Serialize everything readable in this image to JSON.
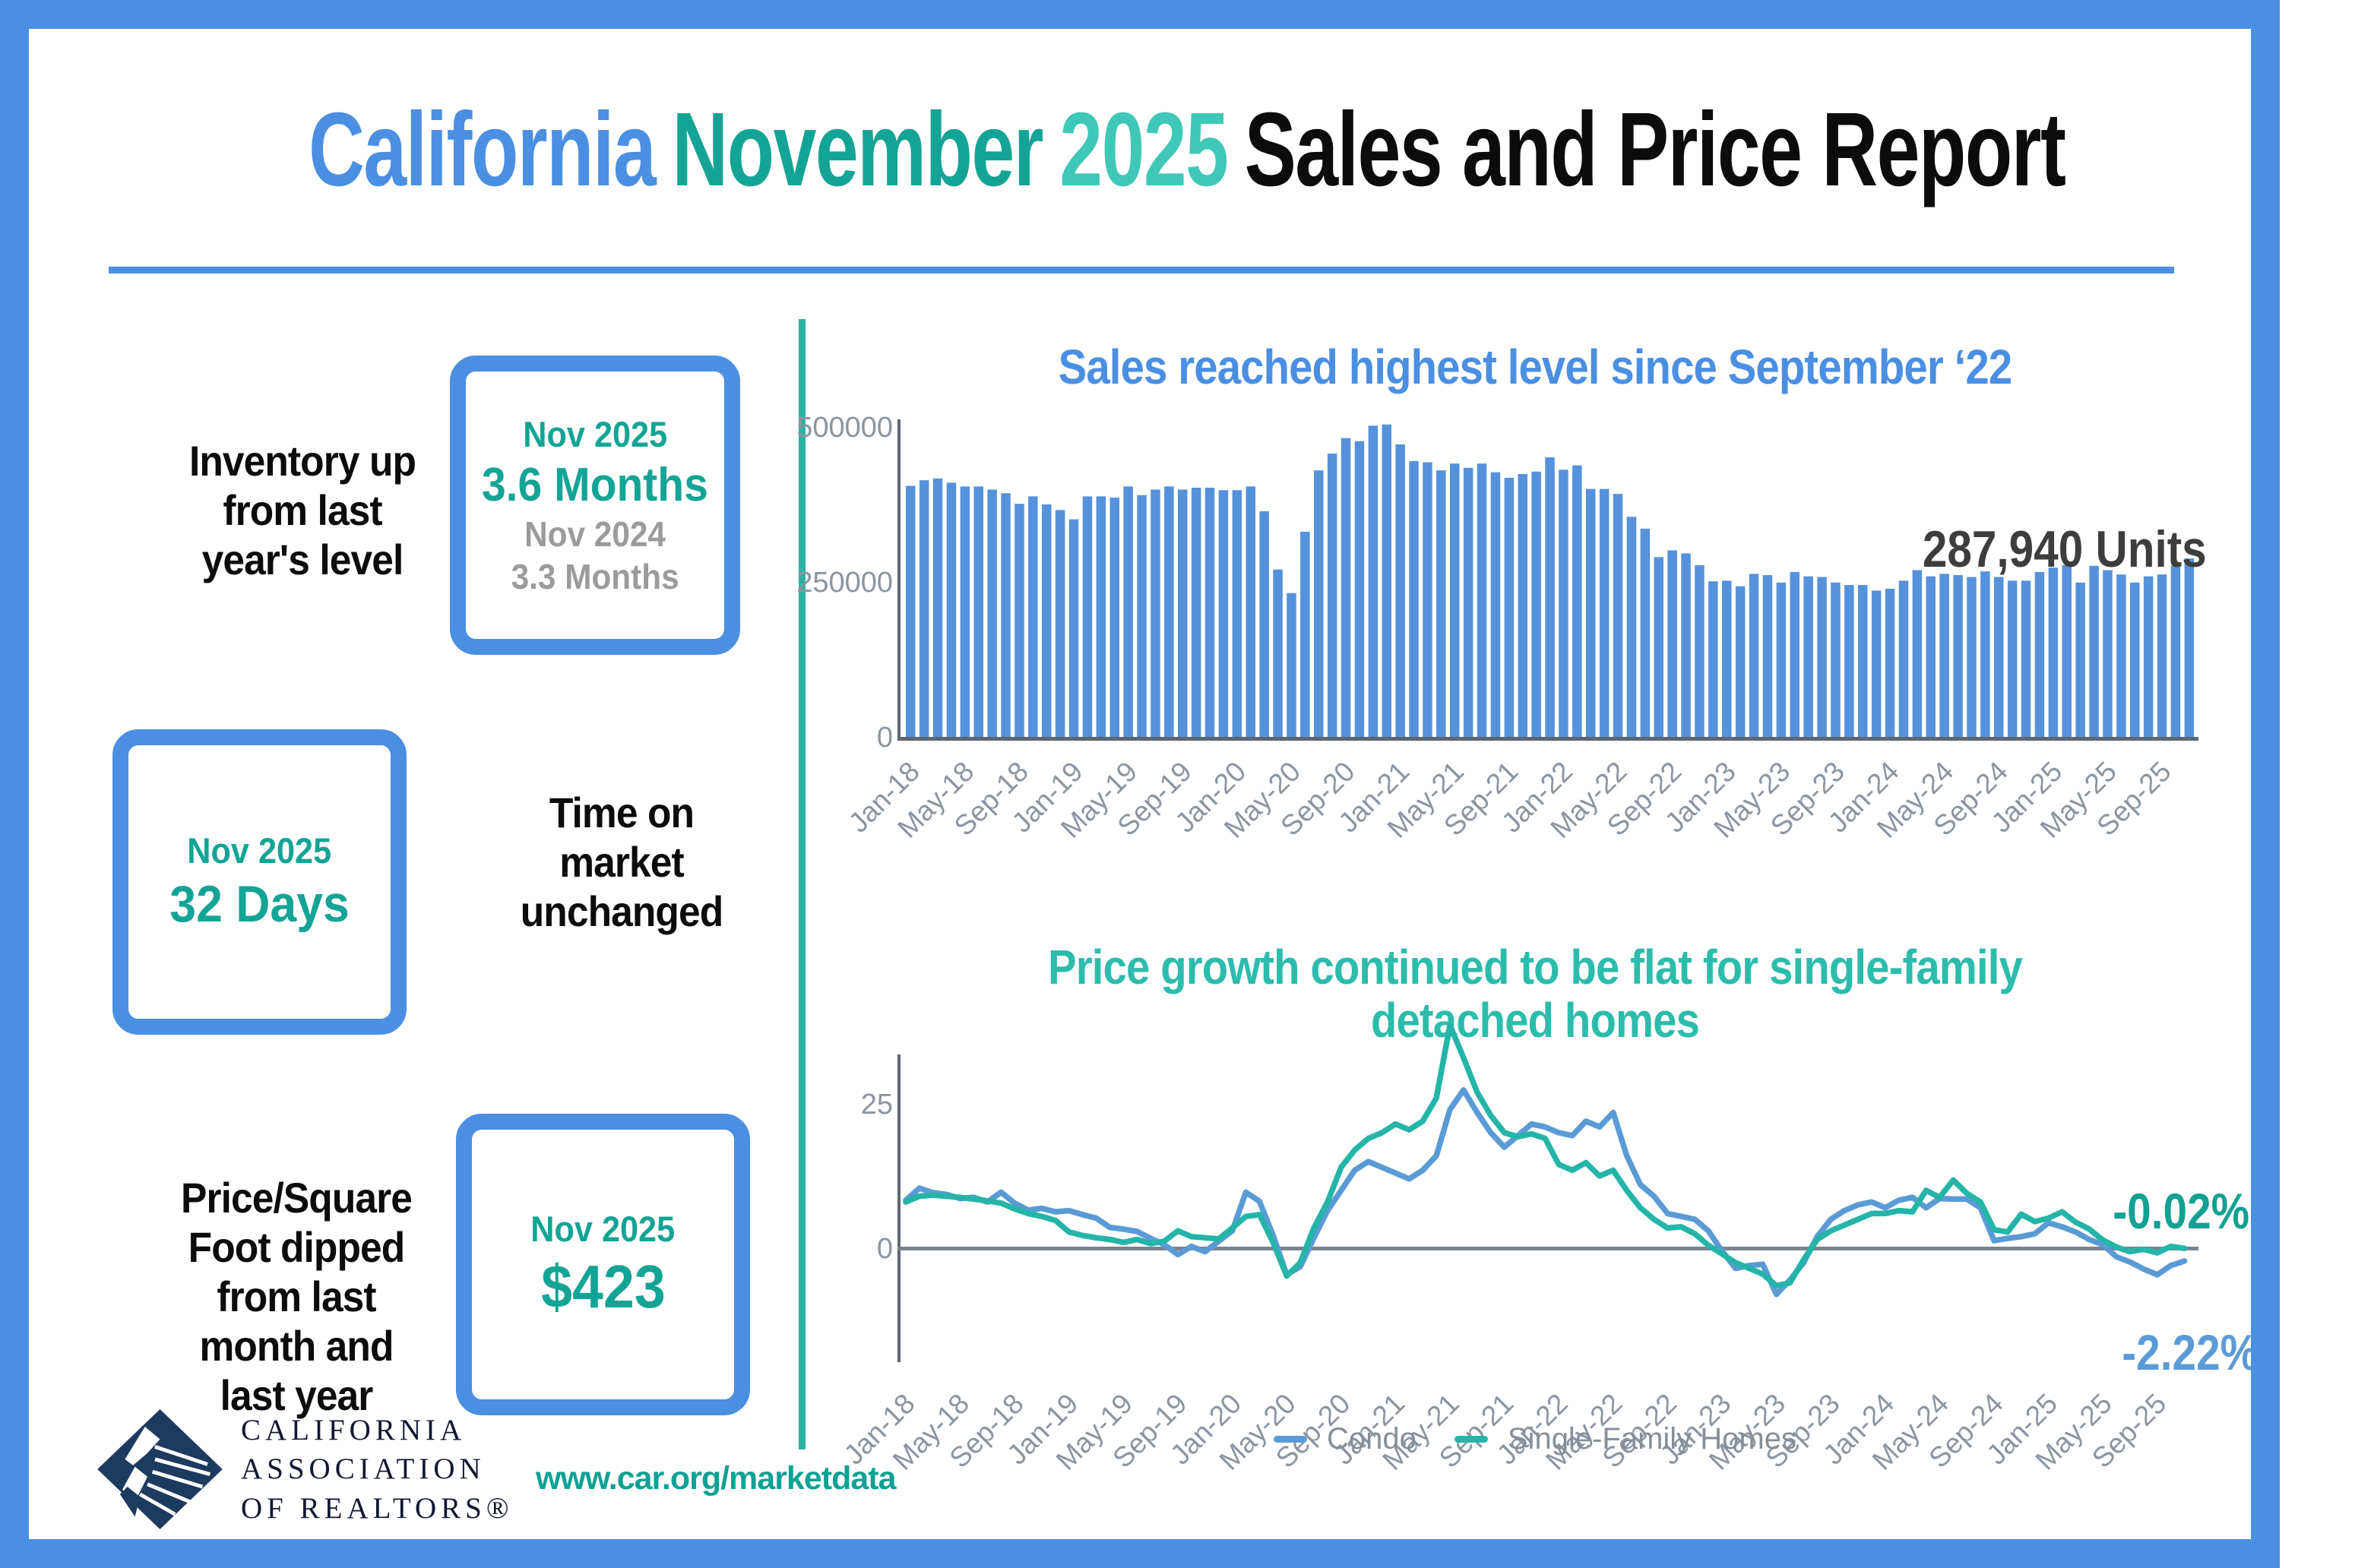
{
  "title": {
    "part_state": "California",
    "part_month": "November",
    "part_year": "2025",
    "part_rest": "Sales and Price Report"
  },
  "stats": [
    {
      "label_lines": [
        "Inventory up",
        "from last",
        "year's level"
      ],
      "box": {
        "period": "Nov 2025",
        "value": "3.6 Months",
        "prev_period": "Nov 2024",
        "prev_value": "3.3 Months"
      }
    },
    {
      "label_lines": [
        "Time on",
        "market",
        "unchanged"
      ],
      "box": {
        "period": "Nov 2025",
        "value": "32 Days"
      }
    },
    {
      "label_lines": [
        "Price/Square",
        "Foot dipped",
        "from last",
        "month and",
        "last year"
      ],
      "box": {
        "period": "Nov 2025",
        "value": "$423"
      }
    }
  ],
  "logo": {
    "org_lines": [
      "CALIFORNIA",
      "ASSOCIATION",
      "OF REALTORS®"
    ]
  },
  "footer_url": "www.car.org/marketdata",
  "colors": {
    "accent_blue": "#4a8fe2",
    "accent_teal_dark": "#14a495",
    "accent_teal_light": "#3fc8b7",
    "bar_blue": "#5592db",
    "condo_blue": "#5b9bd5",
    "sfh_teal": "#25b5a8",
    "axis_gray": "#8b95a1",
    "annotation_gray": "#3d3d3d"
  },
  "chart_data": [
    {
      "type": "bar",
      "title": "Sales reached highest level since September ‘22",
      "annotation": "287,940 Units",
      "bar_color": "#5592db",
      "ylim": [
        0,
        500000
      ],
      "yticks": [
        500000,
        250000,
        0
      ],
      "ytick_labels": [
        "500000",
        "250000",
        "0"
      ],
      "x_start": "Jan-18",
      "x_end": "Nov-25",
      "tick_every": 4,
      "tick_labels": [
        "Jan-18",
        "May-18",
        "Sep-18",
        "Jan-19",
        "May-19",
        "Sep-19",
        "Jan-20",
        "May-20",
        "Sep-20",
        "Jan-21",
        "May-21",
        "Sep-21",
        "Jan-22",
        "May-22",
        "Sep-22",
        "Jan-23",
        "May-23",
        "Sep-23",
        "Jan-24",
        "May-24",
        "Sep-24",
        "Jan-25",
        "May-25",
        "Sep-25"
      ],
      "values": [
        405000,
        414000,
        417000,
        410000,
        404000,
        404000,
        399000,
        393000,
        376000,
        388000,
        375000,
        366000,
        351000,
        388000,
        388000,
        386000,
        404000,
        390000,
        399000,
        404000,
        399000,
        402000,
        402000,
        398000,
        398000,
        404000,
        364000,
        270000,
        232000,
        331000,
        430000,
        457000,
        482000,
        477000,
        502000,
        504000,
        472000,
        445000,
        443000,
        430000,
        441000,
        434000,
        441000,
        427000,
        418000,
        424000,
        428000,
        451000,
        431000,
        438000,
        400000,
        400000,
        392000,
        355000,
        336000,
        290000,
        301000,
        296000,
        277000,
        251000,
        252000,
        243000,
        263000,
        261000,
        249000,
        266000,
        259000,
        258000,
        249000,
        245000,
        245000,
        236000,
        239000,
        252000,
        269000,
        259000,
        263000,
        261000,
        258000,
        267000,
        258000,
        252000,
        252000,
        266000,
        273000,
        277000,
        249000,
        276000,
        269000,
        262000,
        249000,
        259000,
        262000,
        276000,
        287940
      ]
    },
    {
      "type": "line",
      "title_lines": [
        "Price growth continued to be flat for single-family",
        "detached homes"
      ],
      "yticks": [
        25,
        0
      ],
      "ytick_labels": [
        "25",
        "0"
      ],
      "tick_every": 4,
      "tick_labels": [
        "Jan-18",
        "May-18",
        "Sep-18",
        "Jan-19",
        "May-19",
        "Sep-19",
        "Jan-20",
        "May-20",
        "Sep-20",
        "Jan-21",
        "May-21",
        "Sep-21",
        "Jan-22",
        "May-22",
        "Sep-22",
        "Jan-23",
        "May-23",
        "Sep-23",
        "Jan-24",
        "May-24",
        "Sep-24",
        "Jan-25",
        "May-25",
        "Sep-25"
      ],
      "legend_position": "bottom",
      "series": [
        {
          "name": "Condo",
          "color": "#5b9bd5",
          "end_label": "-2.22%",
          "values": [
            8.3,
            10.4,
            9.6,
            9.3,
            8.6,
            8.8,
            8.0,
            9.7,
            7.8,
            6.6,
            6.9,
            6.3,
            6.5,
            5.8,
            5.2,
            3.6,
            3.3,
            2.9,
            1.7,
            0.6,
            -1.1,
            0.3,
            -0.6,
            1.2,
            3.0,
            9.7,
            8.1,
            2.2,
            -4.6,
            -3.2,
            1.8,
            6.5,
            10.0,
            13.5,
            15.0,
            14.0,
            13.0,
            12.0,
            13.5,
            16.0,
            24.0,
            27.4,
            23.5,
            20.0,
            17.5,
            19.5,
            21.5,
            21.0,
            20.0,
            19.5,
            22.0,
            21.0,
            23.5,
            16.0,
            11.0,
            9.0,
            6.0,
            5.5,
            5.0,
            3.0,
            -0.5,
            -3.5,
            -3.0,
            -2.8,
            -8.0,
            -5.5,
            -2.5,
            2.0,
            5.0,
            6.5,
            7.5,
            8.0,
            7.0,
            8.3,
            8.8,
            7.0,
            8.6,
            8.5,
            8.5,
            7.0,
            1.3,
            1.7,
            2.0,
            2.5,
            4.4,
            3.7,
            2.8,
            1.5,
            0.6,
            -1.5,
            -2.4,
            -3.6,
            -4.6,
            -3.0,
            -2.22
          ]
        },
        {
          "name": "Single-Family Homes",
          "color": "#25b5a8",
          "end_label": "-0.02%",
          "values": [
            8.0,
            9.0,
            9.2,
            9.0,
            8.8,
            8.5,
            8.2,
            7.8,
            6.8,
            6.0,
            5.5,
            4.8,
            2.8,
            2.2,
            1.8,
            1.5,
            1.0,
            1.5,
            0.8,
            1.2,
            3.0,
            2.0,
            1.8,
            1.6,
            3.5,
            5.5,
            5.8,
            1.0,
            -4.8,
            -2.5,
            3.5,
            8.0,
            14.0,
            17.0,
            19.0,
            20.0,
            21.5,
            20.5,
            22.0,
            26.0,
            38.6,
            33.0,
            27.0,
            23.0,
            20.0,
            19.3,
            19.8,
            19.0,
            14.5,
            13.5,
            14.8,
            12.5,
            13.5,
            10.0,
            7.0,
            5.0,
            3.5,
            3.7,
            2.5,
            0.5,
            -1.0,
            -2.5,
            -3.5,
            -4.5,
            -6.5,
            -6.0,
            -2.0,
            1.5,
            3.0,
            4.0,
            5.0,
            6.0,
            6.0,
            6.5,
            6.3,
            10.0,
            8.8,
            11.8,
            9.5,
            8.0,
            3.2,
            2.8,
            5.9,
            4.6,
            5.2,
            6.3,
            4.5,
            3.3,
            1.4,
            0.2,
            -0.6,
            -0.2,
            -0.8,
            0.3,
            -0.02
          ]
        }
      ]
    }
  ]
}
